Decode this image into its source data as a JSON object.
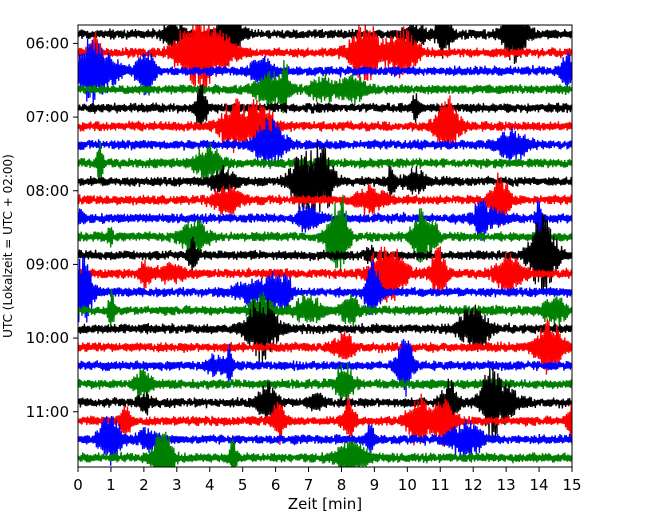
{
  "chart_data": {
    "type": "line",
    "title": "",
    "xlabel": "Zeit  [min]",
    "ylabel": "UTC (Lokalzeit = UTC + 02:00)",
    "xlim": [
      0,
      15
    ],
    "x_ticks": [
      "0",
      "1",
      "2",
      "3",
      "4",
      "5",
      "6",
      "7",
      "8",
      "9",
      "10",
      "11",
      "12",
      "13",
      "14",
      "15"
    ],
    "y_ticks": [
      "06:00",
      "07:00",
      "08:00",
      "09:00",
      "10:00",
      "11:00"
    ],
    "row_start": "05:45",
    "row_end": "11:45",
    "row_interval_min": 15,
    "trace_colors": [
      "#000000",
      "#ff0000",
      "#0000ff",
      "#008000"
    ],
    "grid": false,
    "legend": "none"
  }
}
